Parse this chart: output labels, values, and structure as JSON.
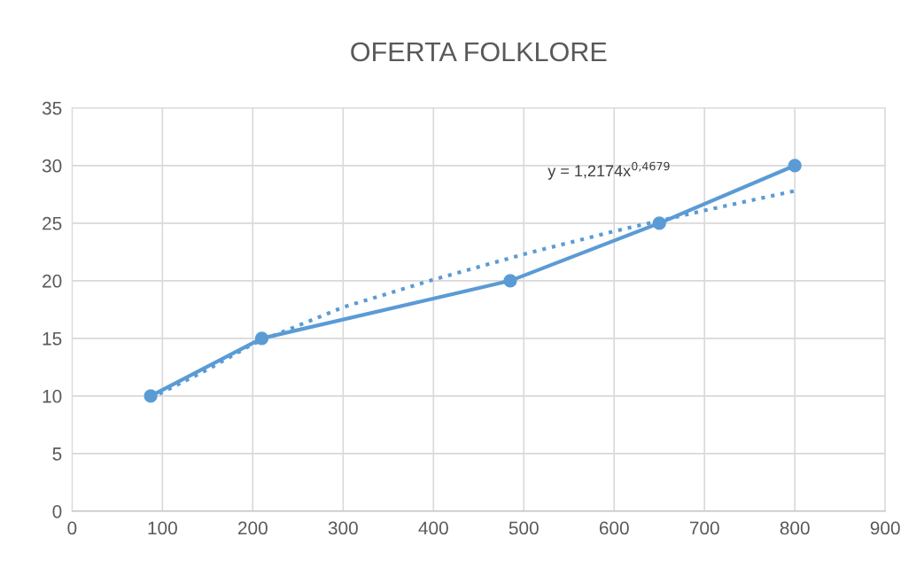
{
  "chart_data": {
    "type": "line",
    "title": "OFERTA FOLKLORE",
    "series": [
      {
        "color": "#5b9bd5",
        "marker": "circle",
        "line_style": "solid",
        "x": [
          87,
          210,
          485,
          650,
          800
        ],
        "values": [
          10,
          15,
          20,
          25,
          30
        ]
      },
      {
        "color": "#5b9bd5",
        "marker": "none",
        "line_style": "dotted",
        "x": [
          87,
          150,
          200,
          300,
          400,
          500,
          600,
          700,
          800
        ],
        "values": [
          9.8,
          12.3,
          14.5,
          17.7,
          20.1,
          22.3,
          24.3,
          26.1,
          27.8
        ]
      }
    ],
    "annotations": [
      "y = 1,2174x$^{0,4679}$"
    ],
    "xlim": [
      0,
      900
    ],
    "xticks": [
      0,
      100,
      200,
      300,
      400,
      500,
      600,
      700,
      800,
      900
    ],
    "ylim": [
      0,
      35
    ],
    "yticks": [
      0,
      5,
      10,
      15,
      20,
      25,
      30,
      35
    ],
    "grid": true,
    "legend": false
  }
}
